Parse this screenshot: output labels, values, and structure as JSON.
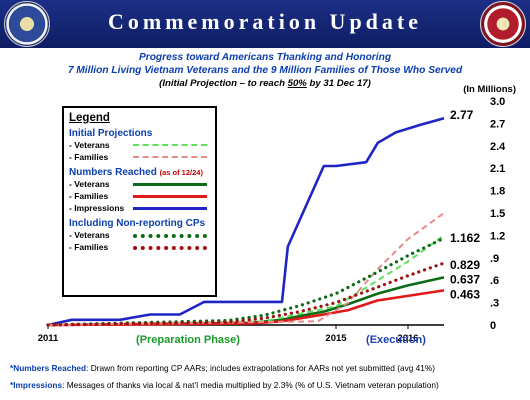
{
  "header": {
    "title": "Commemoration Update"
  },
  "subtitle": {
    "line1": "Progress toward Americans Thanking and Honoring",
    "line2": "7 Million Living Vietnam Veterans and the 9 Million Families of Those Who Served",
    "line3_prefix": "(Initial Projection – to reach ",
    "line3_underlined": "50%",
    "line3_suffix": " by 31 Dec 17)"
  },
  "colors": {
    "header_bg": "#1c2f86",
    "impressions": "#1f25c4",
    "veterans": "#0b6b17",
    "families": "#e11919",
    "proj_veterans": "#5ee05e",
    "proj_families": "#e88a8a",
    "cp_families": "#a01010"
  },
  "legend": {
    "title": "Legend",
    "sec1": "Initial Projections",
    "sec1_items": [
      "- Veterans",
      "- Families"
    ],
    "sec2": "Numbers Reached",
    "sec2_note": "(as of 12/24)",
    "sec2_items": [
      "- Veterans",
      "- Families",
      "- Impressions"
    ],
    "sec3": "Including Non-reporting CPs",
    "sec3_items": [
      "- Veterans",
      "- Families"
    ]
  },
  "footnotes": {
    "f1_label": "*Numbers Reached",
    "f1_text": ":  Drawn from reporting CP AARs; includes extrapolations for AARs not yet submitted (avg 41%)",
    "f2_label": "*Impressions",
    "f2_text": ":  Messages of thanks via local & nat’l media multiplied by 2.3% (% of U.S. Vietnam veteran population)"
  },
  "chart_data": {
    "type": "line",
    "unit_label": "(In Millions)",
    "ylim": [
      0,
      3.0
    ],
    "yticks": [
      {
        "v": 0,
        "label": "0"
      },
      {
        "v": 0.3,
        "label": ".3"
      },
      {
        "v": 0.6,
        "label": ".6"
      },
      {
        "v": 0.9,
        "label": ".9"
      },
      {
        "v": 1.2,
        "label": "1.2"
      },
      {
        "v": 1.5,
        "label": "1.5"
      },
      {
        "v": 1.8,
        "label": "1.8"
      },
      {
        "v": 2.1,
        "label": "2.1"
      },
      {
        "v": 2.4,
        "label": "2.4"
      },
      {
        "v": 2.7,
        "label": "2.7"
      },
      {
        "v": 3.0,
        "label": "3.0"
      }
    ],
    "xlim": [
      2011,
      2016.5
    ],
    "xticks": [
      {
        "v": 2011,
        "label": "2011"
      },
      {
        "v": 2015,
        "label": "2015"
      },
      {
        "v": 2016,
        "label": "2016"
      }
    ],
    "phase_labels": {
      "preparation": "(Preparation Phase)",
      "execution": "(Execution)"
    },
    "series": [
      {
        "key": "impressions",
        "style": "solid",
        "x": [
          2011.0,
          2011.33,
          2012.0,
          2012.42,
          2012.83,
          2013.17,
          2013.33,
          2013.58,
          2013.83,
          2014.0,
          2014.25,
          2014.33,
          2014.83,
          2015.0,
          2015.42,
          2015.58,
          2015.83,
          2016.17,
          2016.5
        ],
        "y": [
          0.0,
          0.07,
          0.07,
          0.14,
          0.14,
          0.31,
          0.31,
          0.31,
          0.31,
          0.31,
          0.31,
          1.05,
          2.13,
          2.13,
          2.18,
          2.44,
          2.58,
          2.68,
          2.77
        ]
      },
      {
        "key": "veterans",
        "style": "solid",
        "x": [
          2011.0,
          2013.83,
          2014.25,
          2014.5,
          2014.83,
          2015.17,
          2015.58,
          2016.0,
          2016.5
        ],
        "y": [
          0.0,
          0.03,
          0.07,
          0.12,
          0.18,
          0.28,
          0.42,
          0.53,
          0.637
        ]
      },
      {
        "key": "families",
        "style": "solid",
        "x": [
          2011.0,
          2013.83,
          2014.25,
          2014.5,
          2014.83,
          2015.17,
          2015.58,
          2016.0,
          2016.5
        ],
        "y": [
          0.0,
          0.02,
          0.05,
          0.09,
          0.14,
          0.2,
          0.33,
          0.39,
          0.463
        ]
      },
      {
        "key": "proj_veterans",
        "style": "dash",
        "x": [
          2011.0,
          2014.0,
          2015.0,
          2016.0,
          2016.5
        ],
        "y": [
          0.0,
          0.05,
          0.25,
          0.85,
          1.2
        ]
      },
      {
        "key": "proj_families",
        "style": "dash",
        "x": [
          2011.0,
          2014.75,
          2015.17,
          2015.58,
          2016.0,
          2016.5
        ],
        "y": [
          0.0,
          0.05,
          0.3,
          0.75,
          1.15,
          1.5
        ]
      },
      {
        "key": "cp_veterans",
        "style": "dot",
        "x": [
          2011.0,
          2013.5,
          2014.0,
          2014.5,
          2015.0,
          2015.5,
          2016.0,
          2016.5
        ],
        "y": [
          0.0,
          0.06,
          0.13,
          0.26,
          0.42,
          0.67,
          0.93,
          1.162
        ]
      },
      {
        "key": "cp_families",
        "style": "dot",
        "x": [
          2011.0,
          2013.5,
          2014.0,
          2014.5,
          2015.0,
          2015.5,
          2016.0,
          2016.5
        ],
        "y": [
          0.0,
          0.04,
          0.09,
          0.18,
          0.3,
          0.48,
          0.66,
          0.829
        ]
      }
    ],
    "end_labels": [
      {
        "series": "impressions",
        "label": "2.77"
      },
      {
        "series": "cp_veterans",
        "label": "1.162"
      },
      {
        "series": "cp_families",
        "label": "0.829"
      },
      {
        "series": "veterans",
        "label": "0.637"
      },
      {
        "series": "families",
        "label": "0.463"
      }
    ]
  }
}
